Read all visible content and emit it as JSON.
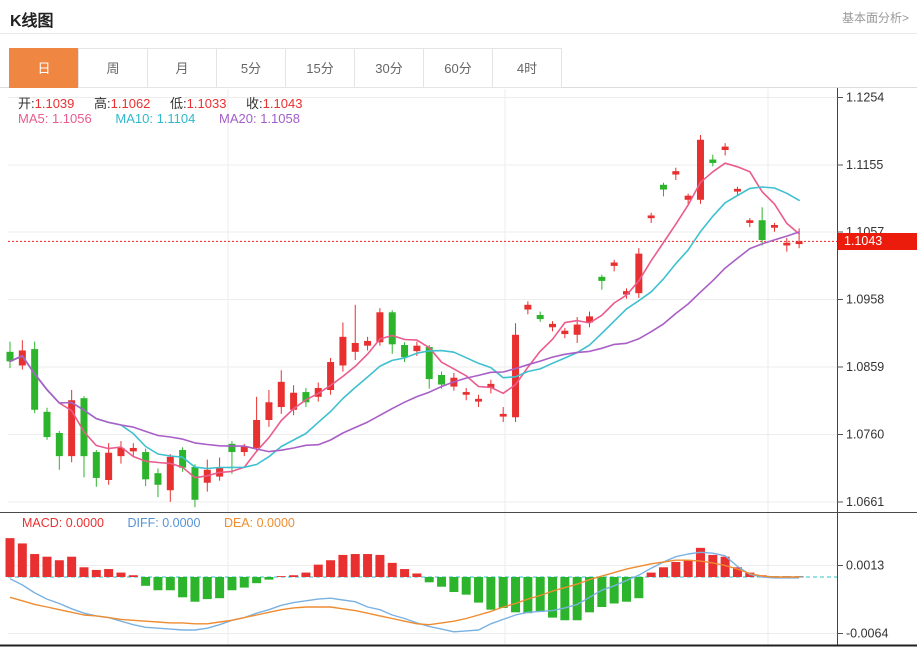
{
  "page": {
    "title": "K线图",
    "fundamental_link": "基本面分析>"
  },
  "tabs": {
    "items": [
      "日",
      "周",
      "月",
      "5分",
      "15分",
      "30分",
      "60分",
      "4时"
    ],
    "active": "日"
  },
  "legend": {
    "ohlc": [
      {
        "label": "开:",
        "value": "1.1039"
      },
      {
        "label": "高:",
        "value": "1.1062"
      },
      {
        "label": "低:",
        "value": "1.1033"
      },
      {
        "label": "收:",
        "value": "1.1043"
      }
    ],
    "ma": [
      {
        "label": "MA5:",
        "value": "1.1056"
      },
      {
        "label": "MA10:",
        "value": "1.1104"
      },
      {
        "label": "MA20:",
        "value": "1.1058"
      }
    ],
    "macd": [
      {
        "label": "MACD:",
        "value": "0.0000"
      },
      {
        "label": "DIFF:",
        "value": "0.0000"
      },
      {
        "label": "DEA:",
        "value": "0.0000"
      }
    ]
  },
  "price_tag": "1.1043",
  "colors": {
    "up": "#e93030",
    "down": "#2cb52c",
    "ma5": "#ea5b8e",
    "ma10": "#3ec0d0",
    "ma20": "#a95fc6",
    "diff_line": "#7ab1e3",
    "dea_line": "#ee8c31",
    "dotted_last_price": "#f32121",
    "price_tag_bg": "#ec1c0c",
    "active_tab": "#ef8642",
    "grid": "#ededed",
    "axis_text": "#333333"
  },
  "chart_data": {
    "type": "candlestick",
    "title": "K线图",
    "legend_position": "top-left",
    "grid": true,
    "panels": [
      {
        "name": "price",
        "axis_side": "right",
        "axis_ticks": [
          1.1254,
          1.1155,
          1.1057,
          1.0958,
          1.0859,
          1.076,
          1.0661
        ],
        "ylim": [
          1.0661,
          1.1254
        ],
        "last_price": 1.1043,
        "ma_periods": [
          5,
          10,
          20
        ],
        "candles_ohlc": [
          [
            1.0881,
            1.0896,
            1.0857,
            1.0867
          ],
          [
            1.0861,
            1.0898,
            1.0855,
            1.0883
          ],
          [
            1.0885,
            1.0896,
            1.0791,
            1.0796
          ],
          [
            1.0793,
            1.0799,
            1.0752,
            1.0756
          ],
          [
            1.0762,
            1.0765,
            1.0708,
            1.0728
          ],
          [
            1.0728,
            1.0825,
            1.0719,
            1.081
          ],
          [
            1.0813,
            1.0816,
            1.0697,
            1.0728
          ],
          [
            1.0734,
            1.0737,
            1.0683,
            1.0696
          ],
          [
            1.0693,
            1.0747,
            1.0686,
            1.0733
          ],
          [
            1.0728,
            1.075,
            1.0717,
            1.074
          ],
          [
            1.0735,
            1.0747,
            1.0726,
            1.074
          ],
          [
            1.0734,
            1.0739,
            1.0684,
            1.0694
          ],
          [
            1.0703,
            1.071,
            1.0668,
            1.0686
          ],
          [
            1.0678,
            1.0731,
            1.0661,
            1.0727
          ],
          [
            1.0737,
            1.0741,
            1.0705,
            1.0711
          ],
          [
            1.0712,
            1.0716,
            1.0653,
            1.0664
          ],
          [
            1.0689,
            1.0723,
            1.0676,
            1.0708
          ],
          [
            1.0698,
            1.0726,
            1.0692,
            1.0711
          ],
          [
            1.0746,
            1.075,
            1.0702,
            1.0734
          ],
          [
            1.0734,
            1.0746,
            1.0728,
            1.0742
          ],
          [
            1.074,
            1.0815,
            1.0734,
            1.0781
          ],
          [
            1.0781,
            1.0825,
            1.0771,
            1.0807
          ],
          [
            1.08,
            1.0854,
            1.079,
            1.0837
          ],
          [
            1.0796,
            1.0832,
            1.0788,
            1.0821
          ],
          [
            1.0822,
            1.0828,
            1.08,
            1.0807
          ],
          [
            1.0815,
            1.0836,
            1.0808,
            1.0828
          ],
          [
            1.0825,
            1.0872,
            1.0818,
            1.0866
          ],
          [
            1.0861,
            1.0924,
            1.0852,
            1.0903
          ],
          [
            1.0881,
            1.095,
            1.0869,
            1.0894
          ],
          [
            1.089,
            1.0903,
            1.0883,
            1.0897
          ],
          [
            1.0895,
            1.0945,
            1.089,
            1.0939
          ],
          [
            1.0939,
            1.0942,
            1.0878,
            1.0892
          ],
          [
            1.0891,
            1.0895,
            1.0866,
            1.0873
          ],
          [
            1.0882,
            1.0896,
            1.0875,
            1.089
          ],
          [
            1.0888,
            1.0891,
            1.0827,
            1.0841
          ],
          [
            1.0847,
            1.0852,
            1.0827,
            1.0833
          ],
          [
            1.083,
            1.085,
            1.0824,
            1.0843
          ],
          [
            1.0818,
            1.0828,
            1.081,
            1.0822
          ],
          [
            1.0808,
            1.0818,
            1.08,
            1.0812
          ],
          [
            1.0828,
            1.084,
            1.082,
            1.0834
          ],
          [
            1.0786,
            1.08,
            1.0778,
            1.079
          ],
          [
            1.0785,
            1.0923,
            1.0778,
            1.0906
          ],
          [
            1.0943,
            1.0955,
            1.0936,
            1.095
          ],
          [
            1.0935,
            1.094,
            1.0925,
            1.0929
          ],
          [
            1.0917,
            1.0926,
            1.0911,
            1.0922
          ],
          [
            1.0907,
            1.0916,
            1.0901,
            1.0912
          ],
          [
            1.0906,
            1.0932,
            1.0894,
            1.0921
          ],
          [
            1.0924,
            1.094,
            1.0917,
            1.0933
          ],
          [
            1.0991,
            1.0994,
            1.0972,
            1.0985
          ],
          [
            1.1007,
            1.1016,
            1.0999,
            1.1012
          ],
          [
            1.0965,
            1.0974,
            1.0959,
            1.097
          ],
          [
            1.0967,
            1.1033,
            1.096,
            1.1025
          ],
          [
            1.1077,
            1.1085,
            1.107,
            1.1081
          ],
          [
            1.1126,
            1.1129,
            1.1109,
            1.1119
          ],
          [
            1.1141,
            1.1151,
            1.1133,
            1.1146
          ],
          [
            1.1104,
            1.1113,
            1.1097,
            1.111
          ],
          [
            1.1104,
            1.1199,
            1.1098,
            1.1192
          ],
          [
            1.1163,
            1.117,
            1.1153,
            1.1158
          ],
          [
            1.1177,
            1.1187,
            1.1169,
            1.1182
          ],
          [
            1.1116,
            1.1123,
            1.111,
            1.112
          ],
          [
            1.107,
            1.1077,
            1.1064,
            1.1074
          ],
          [
            1.1074,
            1.1093,
            1.1037,
            1.1045
          ],
          [
            1.1063,
            1.107,
            1.1057,
            1.1067
          ],
          [
            1.1037,
            1.1048,
            1.1028,
            1.1041
          ],
          [
            1.1039,
            1.1062,
            1.1033,
            1.1043
          ]
        ]
      },
      {
        "name": "macd",
        "axis_side": "right",
        "axis_ticks": [
          0.0013,
          -0.0064
        ],
        "histogram": [
          0.0044,
          0.0038,
          0.0026,
          0.0023,
          0.0019,
          0.0023,
          0.0011,
          0.0008,
          0.0009,
          0.0005,
          0.0002,
          -0.001,
          -0.0015,
          -0.0015,
          -0.0023,
          -0.0028,
          -0.0025,
          -0.0024,
          -0.0015,
          -0.0012,
          -0.0007,
          -0.0003,
          0.0001,
          0.0002,
          0.0005,
          0.0014,
          0.0019,
          0.0025,
          0.0026,
          0.0026,
          0.0025,
          0.0016,
          0.0009,
          0.0004,
          -0.0006,
          -0.0011,
          -0.0017,
          -0.002,
          -0.0029,
          -0.0037,
          -0.0035,
          -0.004,
          -0.0041,
          -0.0039,
          -0.0046,
          -0.0049,
          -0.0049,
          -0.004,
          -0.0034,
          -0.003,
          -0.0028,
          -0.0024,
          0.0005,
          0.0011,
          0.0017,
          0.0019,
          0.0033,
          0.0025,
          0.0023,
          0.0011,
          0.0005,
          0.0002,
          0.0,
          0.0,
          0.0
        ],
        "diff": [
          -0.0002,
          -0.0009,
          -0.0018,
          -0.0025,
          -0.003,
          -0.0036,
          -0.0041,
          -0.0044,
          -0.0046,
          -0.005,
          -0.0054,
          -0.0057,
          -0.0058,
          -0.0059,
          -0.006,
          -0.006,
          -0.0058,
          -0.0054,
          -0.0049,
          -0.0046,
          -0.0041,
          -0.0037,
          -0.0032,
          -0.0029,
          -0.0027,
          -0.0025,
          -0.0024,
          -0.0026,
          -0.0028,
          -0.0034,
          -0.0037,
          -0.0043,
          -0.0047,
          -0.0052,
          -0.0056,
          -0.0059,
          -0.0062,
          -0.0061,
          -0.006,
          -0.0053,
          -0.0048,
          -0.0043,
          -0.004,
          -0.0039,
          -0.0038,
          -0.0035,
          -0.0031,
          -0.0023,
          -0.0015,
          -0.001,
          -0.0004,
          0.0002,
          0.001,
          0.0017,
          0.0023,
          0.0026,
          0.0028,
          0.0027,
          0.0024,
          0.0012,
          0.0003,
          0.0,
          -0.0001,
          -0.0001,
          -0.0001
        ],
        "dea": [
          -0.0023,
          -0.0027,
          -0.0031,
          -0.0034,
          -0.0037,
          -0.004,
          -0.0043,
          -0.0044,
          -0.0046,
          -0.0048,
          -0.0049,
          -0.005,
          -0.0051,
          -0.0052,
          -0.0052,
          -0.0053,
          -0.0053,
          -0.0051,
          -0.0049,
          -0.0046,
          -0.0043,
          -0.004,
          -0.0037,
          -0.0035,
          -0.0034,
          -0.0034,
          -0.0034,
          -0.0036,
          -0.0038,
          -0.0041,
          -0.0044,
          -0.0047,
          -0.005,
          -0.0053,
          -0.0054,
          -0.0052,
          -0.005,
          -0.0047,
          -0.0043,
          -0.0039,
          -0.0034,
          -0.003,
          -0.0025,
          -0.0021,
          -0.0016,
          -0.0012,
          -0.0008,
          -0.0003,
          0.0001,
          0.0005,
          0.0009,
          0.0012,
          0.0015,
          0.0017,
          0.0019,
          0.0019,
          0.0018,
          0.0016,
          0.0013,
          0.0009,
          0.0004,
          0.0001,
          0.0,
          0.0,
          0.0
        ]
      }
    ]
  }
}
